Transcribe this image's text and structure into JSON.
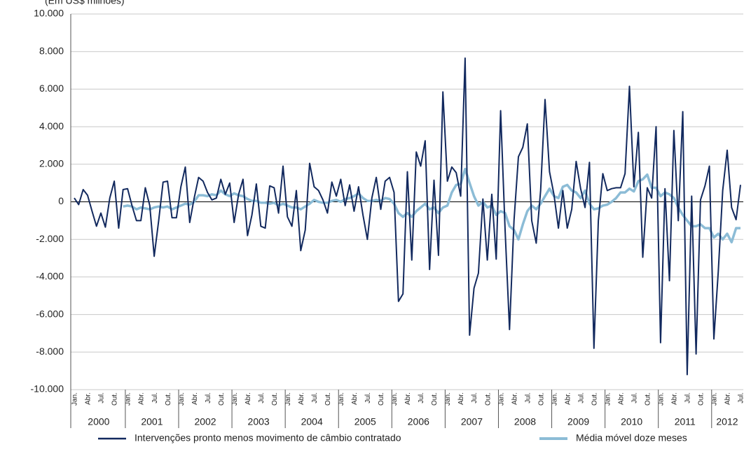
{
  "chart_data": {
    "type": "line",
    "subtitle": "(Em US$ milhões)",
    "categories": [
      "Jan.",
      null,
      null,
      "Abr.",
      null,
      null,
      "Jul.",
      null,
      null,
      "Out.",
      null,
      null,
      "Jan.",
      null,
      null,
      "Abr.",
      null,
      null,
      "Jul.",
      null,
      null,
      "Out.",
      null,
      null,
      "Jan.",
      null,
      null,
      "Abr.",
      null,
      null,
      "Jul.",
      null,
      null,
      "Out.",
      null,
      null,
      "Jan.",
      null,
      null,
      "Abr.",
      null,
      null,
      "Jul.",
      null,
      null,
      "Out.",
      null,
      null,
      "Jan.",
      null,
      null,
      "Abr.",
      null,
      null,
      "Jul.",
      null,
      null,
      "Out.",
      null,
      null,
      "Jan.",
      null,
      null,
      "Abr.",
      null,
      null,
      "Jul.",
      null,
      null,
      "Out.",
      null,
      null,
      "Jan.",
      null,
      null,
      "Abr.",
      null,
      null,
      "Jul.",
      null,
      null,
      "Out.",
      null,
      null,
      "Jan.",
      null,
      null,
      "Abr.",
      null,
      null,
      "Jul.",
      null,
      null,
      "Out.",
      null,
      null,
      "Jan.",
      null,
      null,
      "Abr.",
      null,
      null,
      "Jul.",
      null,
      null,
      "Out.",
      null,
      null,
      "Jan.",
      null,
      null,
      "Abr.",
      null,
      null,
      "Jul.",
      null,
      null,
      "Out.",
      null,
      null,
      "Jan.",
      null,
      null,
      "Abr.",
      null,
      null,
      "Jul.",
      null,
      null,
      "Out.",
      null,
      null,
      "Jan.",
      null,
      null,
      "Abr.",
      null,
      null,
      "Jul.",
      null,
      null,
      "Out.",
      null,
      null,
      "Jan.",
      null,
      null,
      "Abr.",
      null,
      null,
      "Jul."
    ],
    "years": [
      "2000",
      "2001",
      "2002",
      "2003",
      "2004",
      "2005",
      "2006",
      "2007",
      "2008",
      "2009",
      "2010",
      "2011",
      "2012"
    ],
    "series": [
      {
        "name": "Intervenções pronto menos movimento de câmbio contratado",
        "color": "#12295e",
        "values": [
          200,
          -150,
          650,
          350,
          -500,
          -1300,
          -600,
          -1350,
          200,
          1100,
          -1400,
          650,
          700,
          -200,
          -1000,
          -1000,
          750,
          -200,
          -2900,
          -1000,
          1050,
          1100,
          -850,
          -850,
          800,
          1850,
          -1100,
          200,
          1300,
          1100,
          500,
          100,
          200,
          1200,
          400,
          1000,
          -1100,
          400,
          1200,
          -1800,
          -700,
          950,
          -1300,
          -1400,
          850,
          750,
          -600,
          1900,
          -800,
          -1300,
          600,
          -2600,
          -1500,
          2050,
          800,
          600,
          100,
          -600,
          1050,
          300,
          1200,
          -200,
          900,
          -500,
          800,
          -700,
          -2000,
          200,
          1300,
          -400,
          1100,
          1300,
          500,
          -5300,
          -4900,
          1600,
          -3100,
          2650,
          1900,
          3250,
          -3600,
          1150,
          -2850,
          5850,
          1100,
          1850,
          1550,
          300,
          7650,
          -7100,
          -4600,
          -3800,
          150,
          -3100,
          400,
          -3050,
          4850,
          -1500,
          -6800,
          -1000,
          2400,
          2900,
          4150,
          -1000,
          -2200,
          600,
          5450,
          1600,
          400,
          -1400,
          600,
          -1400,
          -400,
          2150,
          700,
          -300,
          2100,
          -7800,
          -1000,
          1500,
          600,
          700,
          750,
          750,
          1500,
          6150,
          800,
          3700,
          -2950,
          750,
          200,
          4000,
          -7500,
          700,
          -4200,
          3800,
          -1000,
          4800,
          -9200,
          300,
          -8100,
          100,
          850,
          1900,
          -7300,
          -3700,
          600,
          2750,
          -300,
          -950,
          900
        ]
      },
      {
        "name": "Média móvel doze meses",
        "color": "#8cbcd6",
        "values": [
          null,
          null,
          null,
          null,
          null,
          null,
          null,
          null,
          null,
          null,
          null,
          -250,
          -200,
          -250,
          -400,
          -300,
          -350,
          -400,
          -300,
          -250,
          -300,
          -250,
          -400,
          -300,
          -200,
          -100,
          -150,
          0,
          350,
          350,
          300,
          400,
          350,
          600,
          400,
          300,
          450,
          350,
          300,
          150,
          50,
          50,
          -50,
          -50,
          -100,
          -50,
          -200,
          -100,
          -200,
          -300,
          -300,
          -400,
          -250,
          -100,
          100,
          0,
          -50,
          -50,
          50,
          100,
          0,
          150,
          200,
          300,
          450,
          200,
          50,
          50,
          100,
          50,
          200,
          150,
          -100,
          -600,
          -800,
          -600,
          -800,
          -500,
          -300,
          -100,
          -400,
          -300,
          -600,
          -300,
          -200,
          500,
          900,
          950,
          1750,
          1000,
          300,
          -200,
          0,
          -300,
          -200,
          -700,
          -500,
          -600,
          -1300,
          -1500,
          -2000,
          -1200,
          -500,
          -200,
          -400,
          -100,
          300,
          700,
          300,
          200,
          800,
          900,
          600,
          500,
          200,
          600,
          -100,
          -400,
          -350,
          -200,
          -150,
          0,
          200,
          500,
          500,
          700,
          550,
          1100,
          1200,
          1450,
          750,
          750,
          300,
          500,
          400,
          200,
          -300,
          -700,
          -1000,
          -1300,
          -1300,
          -1200,
          -1400,
          -1400,
          -1900,
          -1700,
          -2000,
          -1700,
          -2150,
          -1400,
          -1400
        ]
      }
    ],
    "ylim": [
      -10000,
      10000
    ],
    "yticks": [
      {
        "value": -10000,
        "label": "-10.000"
      },
      {
        "value": -8000,
        "label": "-8.000"
      },
      {
        "value": -6000,
        "label": "-6.000"
      },
      {
        "value": -4000,
        "label": "-4.000"
      },
      {
        "value": -2000,
        "label": "-2.000"
      },
      0,
      {
        "value": 2000,
        "label": "2.000"
      },
      {
        "value": 4000,
        "label": "4.000"
      },
      {
        "value": 6000,
        "label": "6.000"
      },
      {
        "value": 8000,
        "label": "8.000"
      },
      {
        "value": 10000,
        "label": "10.000"
      }
    ],
    "grid": true,
    "legend": "bottom"
  }
}
